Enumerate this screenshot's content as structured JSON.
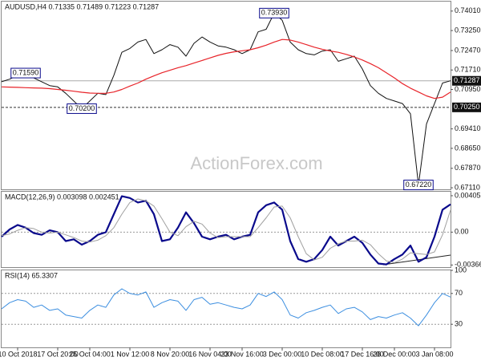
{
  "chart_data": [
    {
      "type": "line",
      "title": "AUDUSD,H4  0.71335 0.71489 0.71223 0.71287",
      "watermark": "ActionForex.com",
      "xlim": [
        0,
        56
      ],
      "ylim": [
        0.6705,
        0.7438
      ],
      "yticks": [
        {
          "value": 0.7401,
          "label": "0.74010"
        },
        {
          "value": 0.7325,
          "label": "0.73250"
        },
        {
          "value": 0.7247,
          "label": "0.72470"
        },
        {
          "value": 0.7171,
          "label": "0.71710"
        },
        {
          "value": 0.7095,
          "label": "0.70950"
        },
        {
          "value": 0.6941,
          "label": "0.69410"
        },
        {
          "value": 0.6865,
          "label": "0.68650"
        },
        {
          "value": 0.6787,
          "label": "0.67870"
        },
        {
          "value": 0.6711,
          "label": "0.67110"
        }
      ],
      "series": [
        {
          "color": "#111111",
          "width": 1,
          "values": [
            0.7125,
            0.7135,
            0.715,
            0.7159,
            0.714,
            0.7125,
            0.711,
            0.7105,
            0.708,
            0.705,
            0.702,
            0.705,
            0.708,
            0.7075,
            0.715,
            0.724,
            0.7255,
            0.728,
            0.729,
            0.7235,
            0.725,
            0.727,
            0.726,
            0.7225,
            0.7275,
            0.73,
            0.728,
            0.7265,
            0.726,
            0.725,
            0.7235,
            0.725,
            0.732,
            0.733,
            0.7393,
            0.7365,
            0.728,
            0.725,
            0.7235,
            0.723,
            0.7245,
            0.725,
            0.7205,
            0.7215,
            0.7225,
            0.7175,
            0.711,
            0.708,
            0.706,
            0.705,
            0.704,
            0.7,
            0.6722,
            0.696,
            0.704,
            0.712,
            0.71287
          ]
        },
        {
          "color": "#e8242a",
          "width": 1.2,
          "values": [
            0.7105,
            0.7104,
            0.7103,
            0.7102,
            0.7101,
            0.71,
            0.7098,
            0.7095,
            0.7092,
            0.7088,
            0.7084,
            0.7081,
            0.708,
            0.708,
            0.7085,
            0.7095,
            0.7108,
            0.712,
            0.7135,
            0.7148,
            0.716,
            0.717,
            0.718,
            0.7188,
            0.7198,
            0.7208,
            0.7218,
            0.7228,
            0.7236,
            0.7242,
            0.7246,
            0.725,
            0.7258,
            0.7268,
            0.728,
            0.729,
            0.7288,
            0.728,
            0.727,
            0.726,
            0.7252,
            0.7245,
            0.724,
            0.7232,
            0.7222,
            0.721,
            0.7196,
            0.718,
            0.716,
            0.714,
            0.7118,
            0.71,
            0.7085,
            0.707,
            0.706,
            0.7065,
            0.7085
          ]
        }
      ],
      "hlines": [
        {
          "value": 0.71287,
          "label": "0.71287",
          "style": "solid"
        },
        {
          "value": 0.7025,
          "label": "0.70250",
          "style": "dashed"
        }
      ],
      "annotations": [
        {
          "x": 3,
          "value": 0.7159,
          "label": "0.71590"
        },
        {
          "x": 10,
          "value": 0.702,
          "label": "0.70200"
        },
        {
          "x": 34,
          "value": 0.7393,
          "label": "0.73930"
        },
        {
          "x": 52,
          "value": 0.6722,
          "label": "0.67220"
        }
      ]
    },
    {
      "type": "line",
      "title": "MACD(12,26,9) 0.003098 0.002451",
      "xlim": [
        0,
        56
      ],
      "ylim": [
        -0.0039,
        0.0045
      ],
      "yticks": [
        0.004055,
        {
          "value": 0,
          "label": "0.00"
        },
        -0.003662
      ],
      "levels": [
        0
      ],
      "series": [
        {
          "color": "#0a0a8c",
          "width": 2.2,
          "values": [
            -0.0005,
            0.0003,
            0.0008,
            0.0005,
            -0.0001,
            -0.0003,
            0.0002,
            0.0,
            -0.001,
            -0.0008,
            -0.0014,
            -0.001,
            -0.0003,
            0.0,
            0.002,
            0.004,
            0.0038,
            0.0033,
            0.0035,
            0.002,
            -0.001,
            -0.0008,
            0.0005,
            0.0022,
            0.001,
            -0.0005,
            -0.0008,
            -0.0005,
            -0.0003,
            -0.0008,
            -0.0005,
            -0.0003,
            0.0022,
            0.003,
            0.0033,
            0.0025,
            -0.001,
            -0.003,
            -0.0033,
            -0.003,
            -0.002,
            -0.0005,
            -0.0015,
            -0.001,
            -0.0005,
            -0.0012,
            -0.0025,
            -0.0035,
            -0.0036,
            -0.003,
            -0.0025,
            -0.0015,
            -0.0033,
            -0.0028,
            -0.0005,
            0.0025,
            0.003098
          ]
        },
        {
          "color": "#a0a0a0",
          "width": 1,
          "values": [
            -0.0004,
            -0.0002,
            0.0002,
            0.0005,
            0.0004,
            0.0,
            -0.0001,
            0.0,
            -0.0003,
            -0.0006,
            -0.001,
            -0.0011,
            -0.0009,
            -0.0004,
            0.0005,
            0.002,
            0.0033,
            0.0037,
            0.0035,
            0.0029,
            0.0015,
            0.0,
            -0.0004,
            0.0006,
            0.0012,
            0.0009,
            -0.0001,
            -0.0006,
            -0.0005,
            -0.0005,
            -0.0005,
            -0.0005,
            0.0005,
            0.0016,
            0.0028,
            0.0029,
            0.0016,
            -0.0005,
            -0.0024,
            -0.0031,
            -0.0028,
            -0.0018,
            -0.0013,
            -0.001,
            -0.001,
            -0.0009,
            -0.0014,
            -0.0024,
            -0.0032,
            -0.0034,
            -0.003,
            -0.0023,
            -0.0024,
            -0.0025,
            -0.0022,
            -0.0003,
            0.002451
          ]
        }
      ]
    },
    {
      "type": "line",
      "title": "RSI(14) 65.3307",
      "xlim": [
        0,
        56
      ],
      "ylim": [
        0,
        100
      ],
      "yticks": [
        100,
        70,
        30
      ],
      "levels": [
        70,
        30
      ],
      "xticks": [
        {
          "value": 2,
          "label": "10 Oct 2018"
        },
        {
          "value": 7,
          "label": "17 Oct 20:00"
        },
        {
          "value": 11,
          "label": "25 Oct 04:00"
        },
        {
          "value": 16,
          "label": "1 Nov 12:00"
        },
        {
          "value": 21,
          "label": "8 Nov 20:00"
        },
        {
          "value": 26,
          "label": "16 Nov 04:00"
        },
        {
          "value": 30,
          "label": "23 Nov 16:00"
        },
        {
          "value": 35,
          "label": "3 Dec 00:00"
        },
        {
          "value": 40,
          "label": "10 Dec 08:00"
        },
        {
          "value": 45,
          "label": "17 Dec 16:00"
        },
        {
          "value": 49,
          "label": "26 Dec 00:00"
        },
        {
          "value": 54,
          "label": "3 Jan 08:00"
        }
      ],
      "series": [
        {
          "color": "#3d8fe0",
          "width": 1,
          "values": [
            50,
            58,
            62,
            60,
            52,
            55,
            48,
            50,
            42,
            40,
            38,
            48,
            55,
            52,
            68,
            76,
            70,
            68,
            72,
            52,
            58,
            62,
            60,
            48,
            62,
            65,
            56,
            58,
            55,
            52,
            50,
            55,
            70,
            66,
            72,
            62,
            42,
            38,
            45,
            48,
            52,
            55,
            44,
            50,
            52,
            46,
            36,
            40,
            38,
            42,
            45,
            38,
            28,
            42,
            58,
            70,
            65.3307
          ]
        }
      ]
    }
  ]
}
